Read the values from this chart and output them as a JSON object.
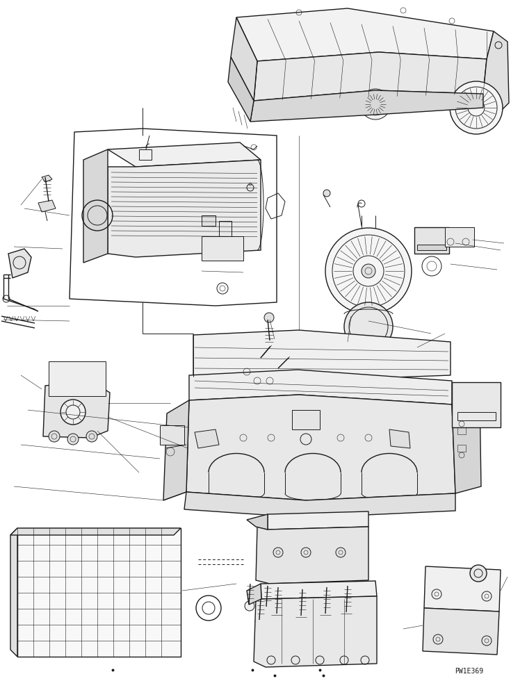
{
  "background_color": "#ffffff",
  "line_color": "#1a1a1a",
  "text_color": "#1a1a1a",
  "watermark": "PW1E369",
  "fig_width": 7.35,
  "fig_height": 9.8,
  "dpi": 100
}
